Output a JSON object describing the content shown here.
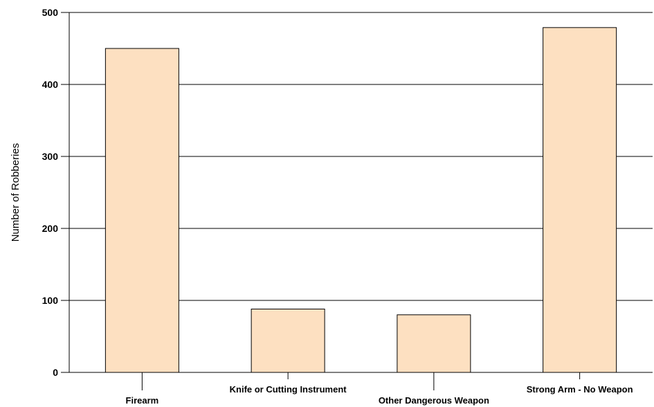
{
  "chart_data": {
    "type": "bar",
    "title": "",
    "xlabel": "",
    "ylabel": "Number of Robberies",
    "categories": [
      "Firearm",
      "Knife or Cutting Instrument",
      "Other Dangerous Weapon",
      "Strong Arm - No Weapon"
    ],
    "values": [
      450,
      88,
      80,
      479
    ],
    "ylim": [
      0,
      500
    ],
    "yticks": [
      0,
      100,
      200,
      300,
      400,
      500
    ],
    "grid": true,
    "legend": "none",
    "colors": {
      "bar_fill": "#fde0c1",
      "bar_stroke": "#000000",
      "grid": "#000000"
    }
  }
}
